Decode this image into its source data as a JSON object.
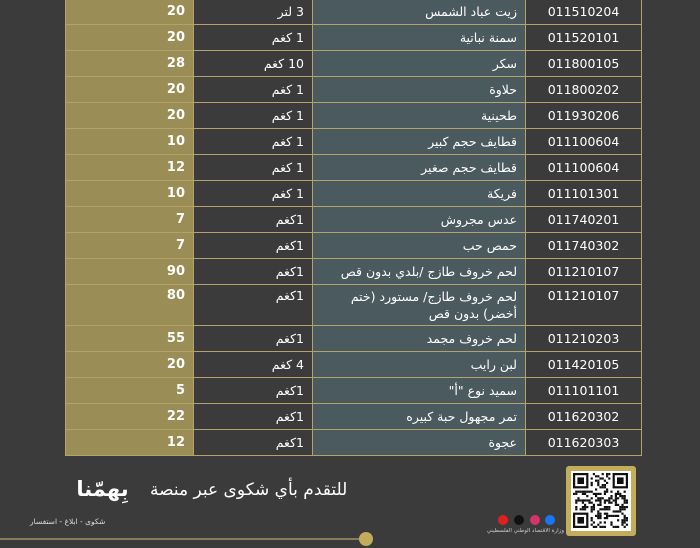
{
  "table": {
    "rows": [
      [
        "011510204",
        "زيت عباد الشمس",
        "3 لتر",
        20
      ],
      [
        "011520101",
        "سمنة نباتية",
        "1 كغم",
        20
      ],
      [
        "011800105",
        "سكر",
        "10 كغم",
        28
      ],
      [
        "011800202",
        "حلاوة",
        "1 كغم",
        20
      ],
      [
        "011930206",
        "طحينية",
        "1 كغم",
        20
      ],
      [
        "011100604",
        "قطايف حجم كبير",
        "1 كغم",
        10
      ],
      [
        "011100604",
        "قطايف حجم  صغير",
        "1 كغم",
        12
      ],
      [
        "011101301",
        "فريكة",
        "1 كغم",
        10
      ],
      [
        "011740201",
        "عدس مجروش",
        "1كغم",
        7
      ],
      [
        "011740302",
        "حمص حب",
        "1كغم",
        7
      ],
      [
        "011210107",
        "لحم خروف طازج /بلدي بدون قص",
        "1كغم",
        90
      ],
      [
        "011210107",
        "لحم خروف طازج/ مستورد (ختم أخضر) بدون قص",
        "1كغم",
        80
      ],
      [
        "011210203",
        "لحم خروف مجمد",
        "1كغم",
        55
      ],
      [
        "011420105",
        "لبن رايب",
        "4 كغم",
        20
      ],
      [
        "011101101",
        "سميد  نوع \"أ\"",
        "1كغم",
        5
      ],
      [
        "011620302",
        "تمر  مجهول حبة كبيره",
        "1كغم",
        22
      ],
      [
        "011620303",
        "عجوة",
        "1كغم",
        12
      ]
    ]
  },
  "footer": {
    "cta": "للتقدم بأي شكوى عبر منصة",
    "brand": "بِهمّنا",
    "tagline": "شكوى - ابلاغ - استفسار",
    "ministry": "وزارة الاقتصاد الوطني الفلسطيني"
  }
}
